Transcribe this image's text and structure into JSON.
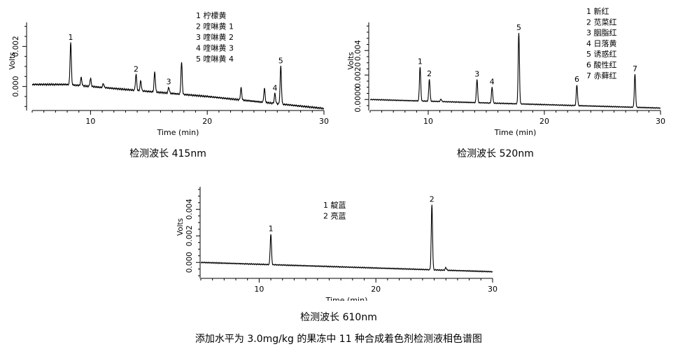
{
  "figure_caption": "添加水平为 3.0mg/kg 的果冻中 11 种合成着色剂检测液相色谱图",
  "chart_data": [
    {
      "type": "line",
      "caption": "检测波长 415nm",
      "xlabel": "Time (min)",
      "ylabel": "Volts",
      "xlim": [
        5,
        30
      ],
      "ylim": [
        -0.0012,
        0.0032
      ],
      "xticks": [
        10,
        20,
        30
      ],
      "yticks": [
        0.0,
        0.002
      ],
      "ytick_labels": [
        "0.000",
        "0.002"
      ],
      "baseline": [
        [
          5,
          0.0001
        ],
        [
          8,
          0.0001
        ],
        [
          12,
          -0.0001
        ],
        [
          16,
          -0.0003
        ],
        [
          20,
          -0.0005
        ],
        [
          25,
          -0.0008
        ],
        [
          30,
          -0.0011
        ]
      ],
      "peaks": [
        {
          "t": 8.3,
          "h": 0.0021,
          "label": "1"
        },
        {
          "t": 9.2,
          "h": 0.0004
        },
        {
          "t": 10.0,
          "h": 0.0004
        },
        {
          "t": 11.1,
          "h": 0.0002
        },
        {
          "t": 13.9,
          "h": 0.0008,
          "label": "2"
        },
        {
          "t": 14.3,
          "h": 0.0005
        },
        {
          "t": 15.5,
          "h": 0.001
        },
        {
          "t": 16.7,
          "h": 0.0003,
          "label": "3"
        },
        {
          "t": 17.8,
          "h": 0.0016
        },
        {
          "t": 22.9,
          "h": 0.0006
        },
        {
          "t": 24.9,
          "h": 0.0007
        },
        {
          "t": 25.8,
          "h": 0.0005,
          "label": "4"
        },
        {
          "t": 26.3,
          "h": 0.0019,
          "label": "5"
        }
      ],
      "legend": [
        "1  柠檬黄",
        "2  喹啉黄 1",
        "3  喹啉黄 2",
        "4  喹啉黄 3",
        "5  喹啉黄 4"
      ]
    },
    {
      "type": "line",
      "caption": "检测波长 520nm",
      "xlabel": "Time (min)",
      "ylabel": "Volts",
      "xlim": [
        5,
        30
      ],
      "ylim": [
        -0.0009,
        0.0063
      ],
      "xticks": [
        10,
        20,
        30
      ],
      "yticks": [
        0.0,
        0.002,
        0.004
      ],
      "ytick_labels": [
        "0.0000",
        "0.0020",
        "0.004"
      ],
      "baseline": [
        [
          5,
          0.0
        ],
        [
          30,
          -0.0007
        ]
      ],
      "peaks": [
        {
          "t": 9.3,
          "h": 0.0028,
          "label": "1"
        },
        {
          "t": 10.1,
          "h": 0.0018,
          "label": "2"
        },
        {
          "t": 11.1,
          "h": 0.0002
        },
        {
          "t": 14.2,
          "h": 0.0019,
          "label": "3"
        },
        {
          "t": 15.5,
          "h": 0.0013,
          "label": "4"
        },
        {
          "t": 17.8,
          "h": 0.0058,
          "label": "5"
        },
        {
          "t": 22.8,
          "h": 0.0017,
          "label": "6"
        },
        {
          "t": 27.8,
          "h": 0.0027,
          "label": "7"
        }
      ],
      "legend": [
        "1  新红",
        "2  苋菜红",
        "3  胭脂红",
        "4  日落黄",
        "5  诱惑红",
        "6  酸性红",
        "7  赤藓红"
      ]
    },
    {
      "type": "line",
      "caption": "检测波长 610nm",
      "xlabel": "Time (min)",
      "ylabel": "Volts",
      "xlim": [
        5,
        30
      ],
      "ylim": [
        -0.0012,
        0.0057
      ],
      "xticks": [
        10,
        20,
        30
      ],
      "yticks": [
        0.0,
        0.002,
        0.004
      ],
      "ytick_labels": [
        "0.000",
        "0.002",
        "0.004"
      ],
      "baseline": [
        [
          5,
          0.0
        ],
        [
          30,
          -0.0007
        ]
      ],
      "peaks": [
        {
          "t": 11.0,
          "h": 0.0023,
          "label": "1"
        },
        {
          "t": 24.8,
          "h": 0.0049,
          "label": "2"
        },
        {
          "t": 26.0,
          "h": 0.0002
        }
      ],
      "legend": [
        "1  靛蓝",
        "2  亮蓝"
      ]
    }
  ]
}
